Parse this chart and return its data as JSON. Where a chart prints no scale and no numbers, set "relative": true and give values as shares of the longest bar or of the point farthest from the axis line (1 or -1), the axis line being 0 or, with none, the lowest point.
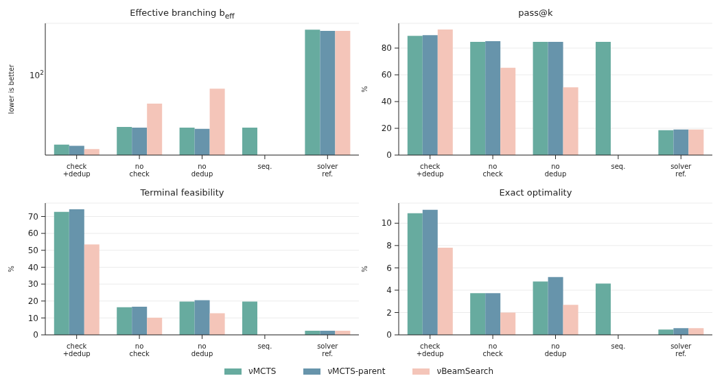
{
  "chart_data": [
    {
      "type": "bar",
      "title": "Effective branching b$_{eff}$",
      "ylabel": "lower is better",
      "categories": [
        "check +dedup",
        "no check",
        "no dedup",
        "seq.",
        "solver ref."
      ],
      "relative": true,
      "annotations": [
        "10$^{2}$"
      ],
      "grid": "y",
      "legend": false,
      "series": [
        {
          "color": "#67ab9f",
          "values": [
            0.084,
            0.224,
            0.219,
            0.219,
            1
          ]
        },
        {
          "color": "#6794ab",
          "values": [
            0.074,
            0.219,
            0.209,
            null,
            0.99
          ]
        },
        {
          "color": "#f4c5b9",
          "values": [
            0.048,
            0.41,
            0.529,
            null,
            0.99
          ]
        }
      ]
    },
    {
      "type": "bar",
      "title": "pass@k",
      "ylabel": "%",
      "categories": [
        "check +dedup",
        "no check",
        "no dedup",
        "seq.",
        "solver ref."
      ],
      "ylim": [
        0,
        98.5
      ],
      "yticks": [
        0,
        20,
        40,
        60,
        80
      ],
      "grid": "y",
      "legend": false,
      "series": [
        {
          "color": "#67ab9f",
          "values": [
            89.1,
            84.7,
            84.7,
            84.7,
            18.6
          ]
        },
        {
          "color": "#6794ab",
          "values": [
            89.6,
            85.2,
            84.7,
            null,
            19.1
          ]
        },
        {
          "color": "#f4c5b9",
          "values": [
            93.9,
            65.3,
            50.7,
            null,
            19.1
          ]
        }
      ]
    },
    {
      "type": "bar",
      "title": "Terminal feasibility",
      "ylabel": "%",
      "categories": [
        "check +dedup",
        "no check",
        "no dedup",
        "seq.",
        "solver ref."
      ],
      "ylim": [
        0,
        77.9
      ],
      "yticks": [
        0,
        10,
        20,
        30,
        40,
        50,
        60,
        70
      ],
      "grid": "y",
      "legend": false,
      "series": [
        {
          "color": "#67ab9f",
          "values": [
            72.7,
            16.3,
            19.7,
            19.7,
            2.4
          ]
        },
        {
          "color": "#6794ab",
          "values": [
            74.2,
            16.6,
            20.5,
            null,
            2.4
          ]
        },
        {
          "color": "#f4c5b9",
          "values": [
            53.5,
            10.1,
            12.8,
            null,
            2.4
          ]
        }
      ]
    },
    {
      "type": "bar",
      "title": "Exact optimality",
      "ylabel": "%",
      "categories": [
        "check +dedup",
        "no check",
        "no dedup",
        "seq.",
        "solver ref."
      ],
      "ylim": [
        0,
        11.8
      ],
      "yticks": [
        0,
        2,
        4,
        6,
        8,
        10
      ],
      "grid": "y",
      "legend": "bottom",
      "series": [
        {
          "name": "νMCTS",
          "color": "#67ab9f",
          "values": [
            10.9,
            3.73,
            4.78,
            4.6,
            0.48
          ]
        },
        {
          "name": "νMCTS-parent",
          "color": "#6794ab",
          "values": [
            11.2,
            3.73,
            5.18,
            null,
            0.6
          ]
        },
        {
          "name": "νBeamSearch",
          "color": "#f4c5b9",
          "values": [
            7.8,
            1.99,
            2.69,
            null,
            0.6
          ]
        }
      ]
    }
  ]
}
